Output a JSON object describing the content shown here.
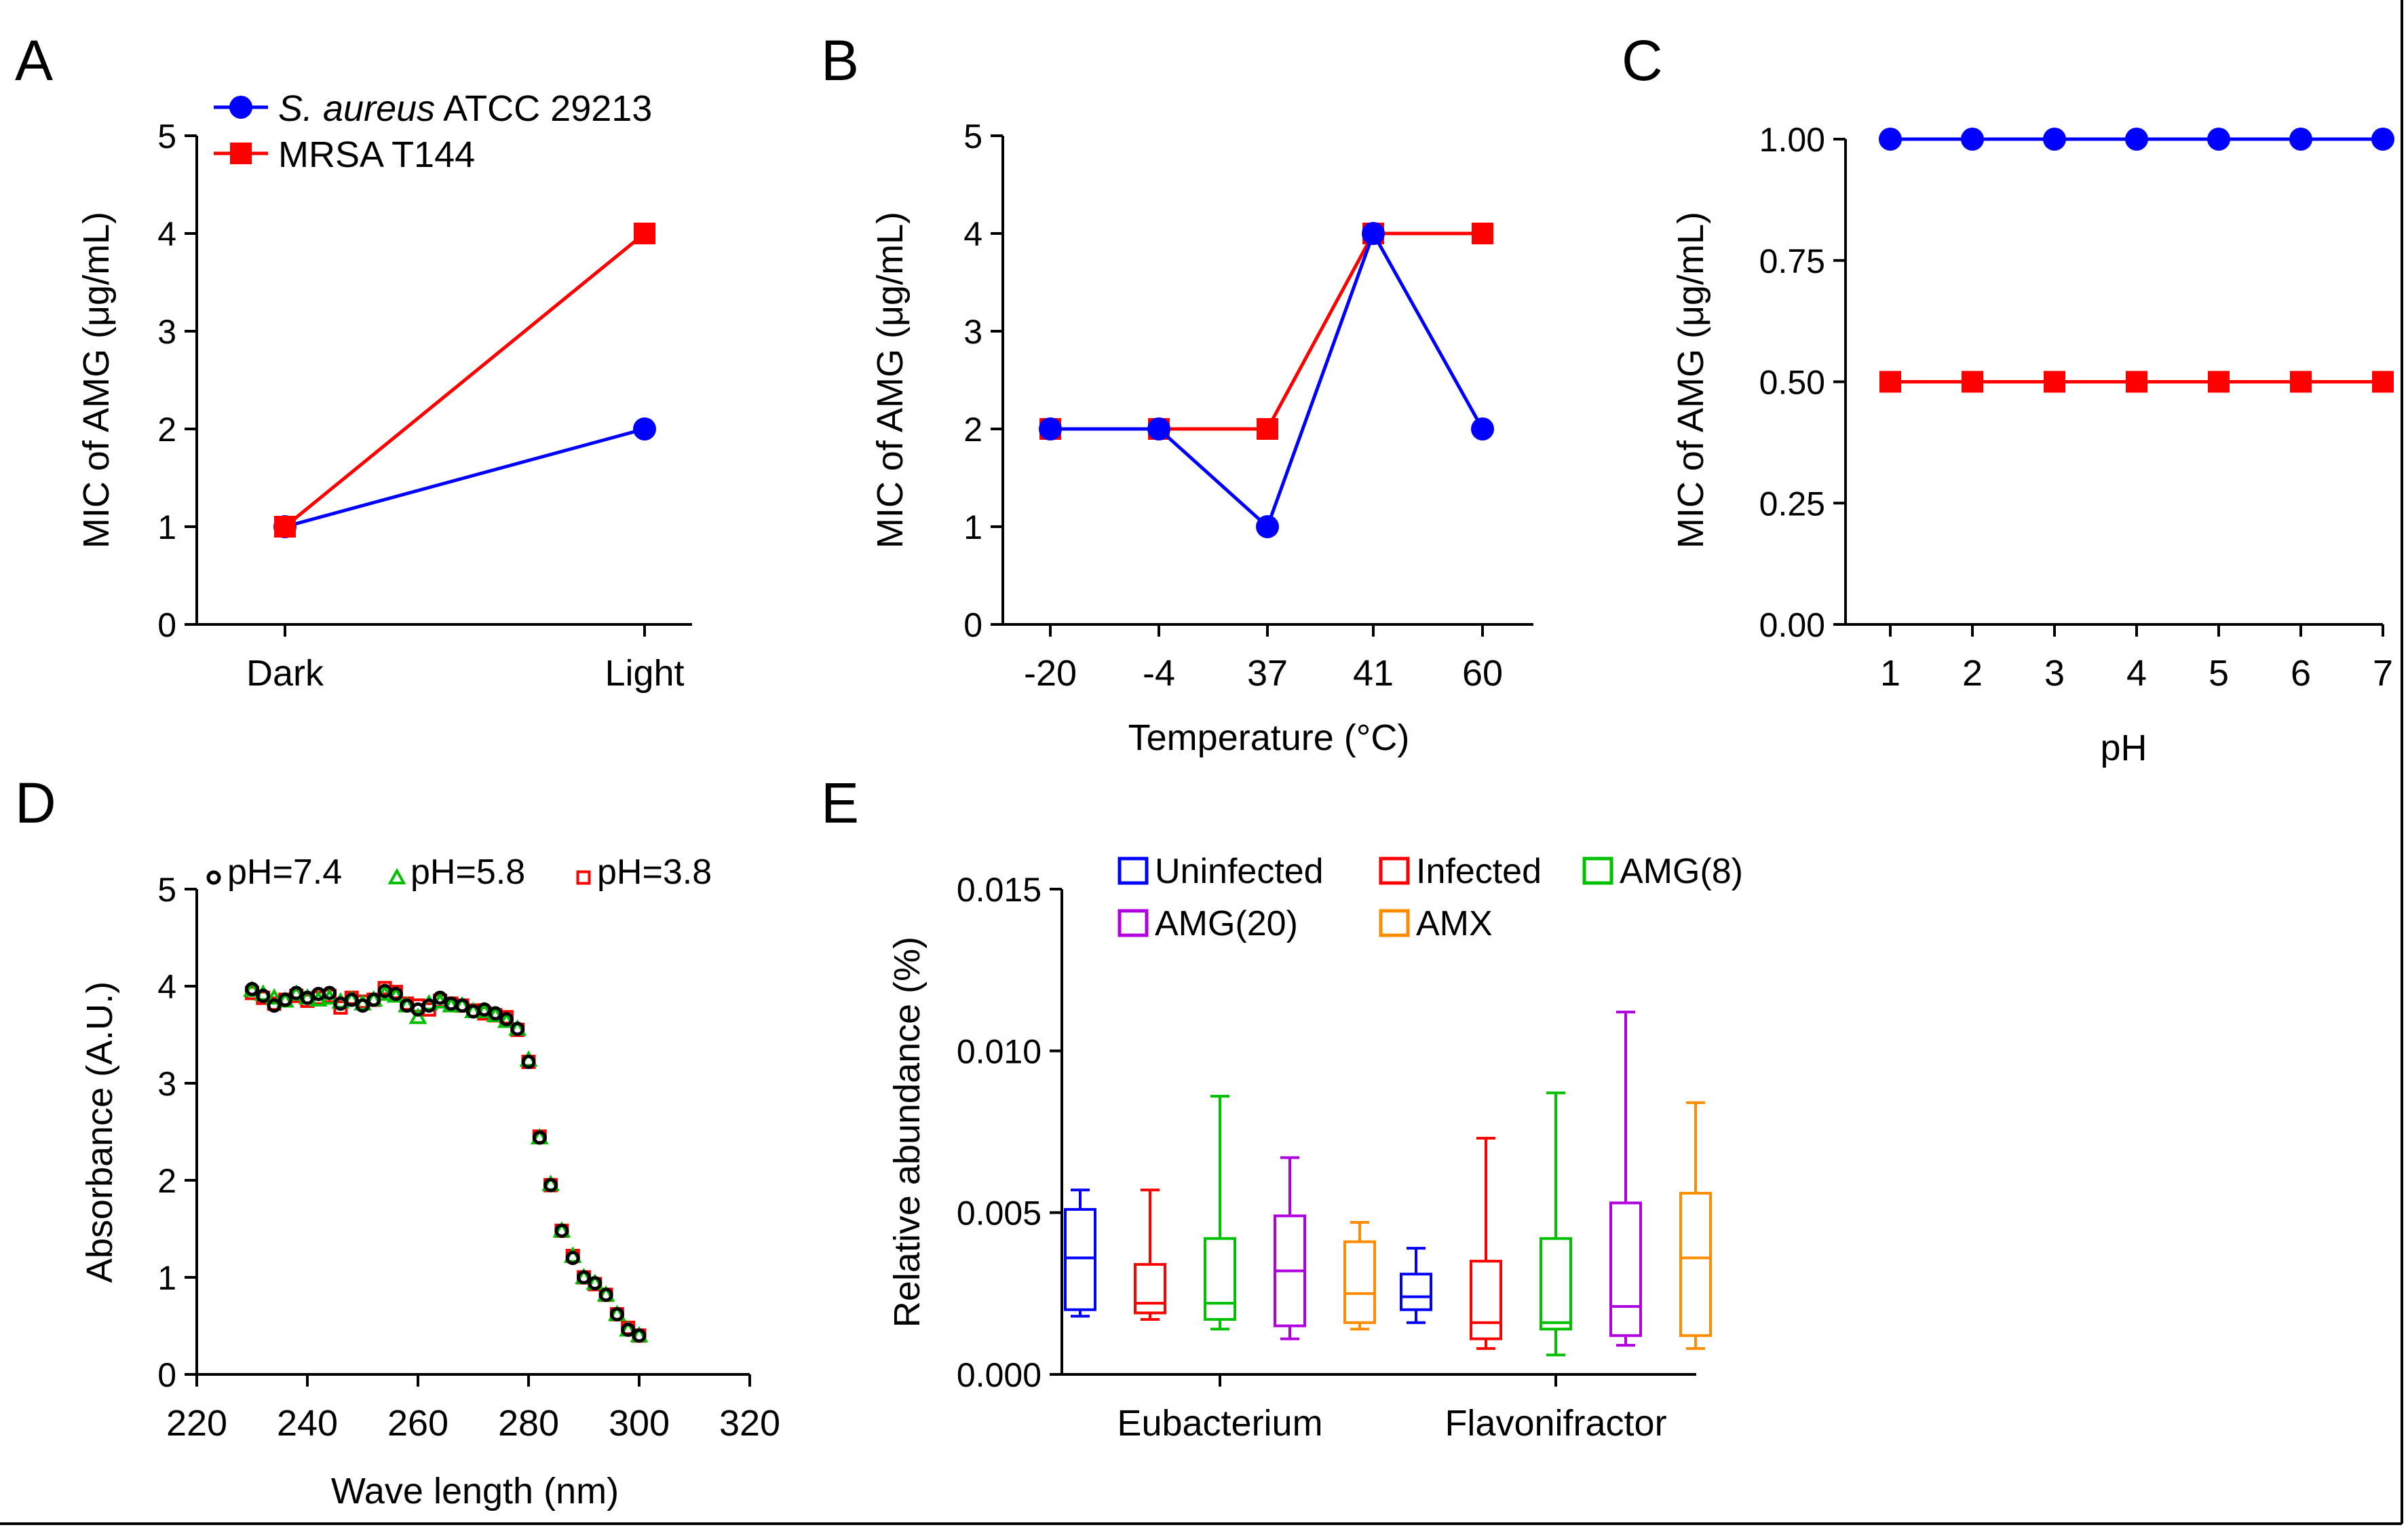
{
  "colors": {
    "blue": "#0000ff",
    "red": "#ff0000",
    "green": "#00c000",
    "purple": "#b000e0",
    "orange": "#ff8c00",
    "black": "#000000"
  },
  "panel_labels": [
    "A",
    "B",
    "C",
    "D",
    "E"
  ],
  "chart_data": [
    {
      "panel": "A",
      "type": "line",
      "categories": [
        "Dark",
        "Light"
      ],
      "ylabel": "MIC of AMG (μg/mL)",
      "xlabel": "",
      "ylim": [
        0,
        5
      ],
      "yticks": [
        "0",
        "1",
        "2",
        "3",
        "4",
        "5"
      ],
      "series": [
        {
          "name_italic": "S. aureus",
          "name_rest": " ATCC 29213",
          "color": "#0000ff",
          "marker": "circle",
          "values": [
            1,
            2
          ]
        },
        {
          "name_italic": "",
          "name_rest": "MRSA T144",
          "color": "#ff0000",
          "marker": "square",
          "values": [
            1,
            4
          ]
        }
      ]
    },
    {
      "panel": "B",
      "type": "line",
      "categories": [
        "-20",
        "-4",
        "37",
        "41",
        "60"
      ],
      "ylabel": "MIC of AMG (μg/mL)",
      "xlabel": "Temperature (°C)",
      "ylim": [
        0,
        5
      ],
      "yticks": [
        "0",
        "1",
        "2",
        "3",
        "4",
        "5"
      ],
      "series": [
        {
          "name": "MRSA T144",
          "color": "#ff0000",
          "marker": "square",
          "values": [
            2,
            2,
            2,
            4,
            4
          ]
        },
        {
          "name": "S. aureus ATCC 29213",
          "color": "#0000ff",
          "marker": "circle",
          "values": [
            2,
            2,
            1,
            4,
            2
          ]
        }
      ]
    },
    {
      "panel": "C",
      "type": "line",
      "categories": [
        "1",
        "2",
        "3",
        "4",
        "5",
        "6",
        "7"
      ],
      "ylabel": "MIC of AMG (μg/mL)",
      "xlabel": "pH",
      "ylim": [
        0,
        1
      ],
      "yticks": [
        "0.00",
        "0.25",
        "0.50",
        "0.75",
        "1.00"
      ],
      "series": [
        {
          "name": "S. aureus ATCC 29213",
          "color": "#0000ff",
          "marker": "circle",
          "values": [
            1,
            1,
            1,
            1,
            1,
            1,
            1
          ]
        },
        {
          "name": "MRSA T144",
          "color": "#ff0000",
          "marker": "square",
          "values": [
            0.5,
            0.5,
            0.5,
            0.5,
            0.5,
            0.5,
            0.5
          ]
        }
      ]
    },
    {
      "panel": "D",
      "type": "scatter",
      "xlabel": "Wave length (nm)",
      "ylabel": "Absorbance (A.U.)",
      "xlim": [
        220,
        320
      ],
      "ylim": [
        0,
        5
      ],
      "xticks": [
        "220",
        "240",
        "260",
        "280",
        "300",
        "320"
      ],
      "yticks": [
        "0",
        "1",
        "2",
        "3",
        "4",
        "5"
      ],
      "x": [
        230,
        232,
        234,
        236,
        238,
        240,
        242,
        244,
        246,
        248,
        250,
        252,
        254,
        256,
        258,
        260,
        262,
        264,
        266,
        268,
        270,
        272,
        274,
        276,
        278,
        280,
        282,
        284,
        286,
        288,
        290,
        292,
        294,
        296,
        298,
        300
      ],
      "series": [
        {
          "name": "pH=3.8",
          "color": "#ff0000",
          "marker": "square-open",
          "values": [
            3.93,
            3.88,
            3.82,
            3.86,
            3.9,
            3.85,
            3.88,
            3.9,
            3.78,
            3.88,
            3.84,
            3.86,
            3.98,
            3.94,
            3.82,
            3.8,
            3.76,
            3.85,
            3.82,
            3.8,
            3.75,
            3.72,
            3.7,
            3.68,
            3.55,
            3.22,
            2.45,
            1.95,
            1.48,
            1.22,
            1.0,
            0.93,
            0.82,
            0.62,
            0.48,
            0.4
          ]
        },
        {
          "name": "pH=5.8",
          "color": "#00c000",
          "marker": "triangle-open",
          "values": [
            3.96,
            3.92,
            3.88,
            3.85,
            3.92,
            3.88,
            3.86,
            3.88,
            3.84,
            3.86,
            3.82,
            3.86,
            3.92,
            3.9,
            3.8,
            3.68,
            3.82,
            3.84,
            3.8,
            3.8,
            3.74,
            3.74,
            3.7,
            3.64,
            3.56,
            3.24,
            2.44,
            1.96,
            1.48,
            1.22,
            1.0,
            0.94,
            0.82,
            0.62,
            0.46,
            0.4
          ]
        },
        {
          "name": "pH=7.4",
          "color": "#000000",
          "marker": "circle-open",
          "values": [
            3.97,
            3.9,
            3.8,
            3.86,
            3.93,
            3.88,
            3.92,
            3.93,
            3.82,
            3.86,
            3.8,
            3.86,
            3.95,
            3.92,
            3.8,
            3.76,
            3.8,
            3.88,
            3.82,
            3.8,
            3.74,
            3.76,
            3.72,
            3.66,
            3.56,
            3.22,
            2.44,
            1.95,
            1.48,
            1.2,
            1.0,
            0.94,
            0.82,
            0.62,
            0.46,
            0.4
          ]
        }
      ],
      "legend_order": [
        "pH=7.4",
        "pH=5.8",
        "pH=3.8"
      ]
    },
    {
      "panel": "E",
      "type": "box",
      "ylabel": "Relative abundance  (%)",
      "categories": [
        "Eubacterium",
        "Flavonifractor"
      ],
      "ylim": [
        0,
        0.015
      ],
      "yticks": [
        "0.000",
        "0.005",
        "0.010",
        "0.015"
      ],
      "series": [
        {
          "name": "Uninfected",
          "color": "#0000ff",
          "stats": [
            {
              "min": 0.0018,
              "q1": 0.002,
              "median": 0.0036,
              "q3": 0.0051,
              "max": 0.0057
            },
            {
              "min": 0.0016,
              "q1": 0.002,
              "median": 0.0024,
              "q3": 0.0031,
              "max": 0.0039
            }
          ]
        },
        {
          "name": "Infected",
          "color": "#ff0000",
          "stats": [
            {
              "min": 0.0017,
              "q1": 0.0019,
              "median": 0.0022,
              "q3": 0.0034,
              "max": 0.0057
            },
            {
              "min": 0.0008,
              "q1": 0.0011,
              "median": 0.0016,
              "q3": 0.0035,
              "max": 0.0073
            }
          ]
        },
        {
          "name": "AMG(8)",
          "color": "#00c000",
          "stats": [
            {
              "min": 0.0014,
              "q1": 0.0017,
              "median": 0.0022,
              "q3": 0.0042,
              "max": 0.0086
            },
            {
              "min": 0.0006,
              "q1": 0.0014,
              "median": 0.0016,
              "q3": 0.0042,
              "max": 0.0087
            }
          ]
        },
        {
          "name": "AMG(20)",
          "color": "#b000e0",
          "stats": [
            {
              "min": 0.0011,
              "q1": 0.0015,
              "median": 0.0032,
              "q3": 0.0049,
              "max": 0.0067
            },
            {
              "min": 0.0009,
              "q1": 0.0012,
              "median": 0.0021,
              "q3": 0.0053,
              "max": 0.0112
            }
          ]
        },
        {
          "name": "AMX",
          "color": "#ff8c00",
          "stats": [
            {
              "min": 0.0014,
              "q1": 0.0016,
              "median": 0.0025,
              "q3": 0.0041,
              "max": 0.0047
            },
            {
              "min": 0.0008,
              "q1": 0.0012,
              "median": 0.0036,
              "q3": 0.0056,
              "max": 0.0084
            }
          ]
        }
      ]
    }
  ]
}
